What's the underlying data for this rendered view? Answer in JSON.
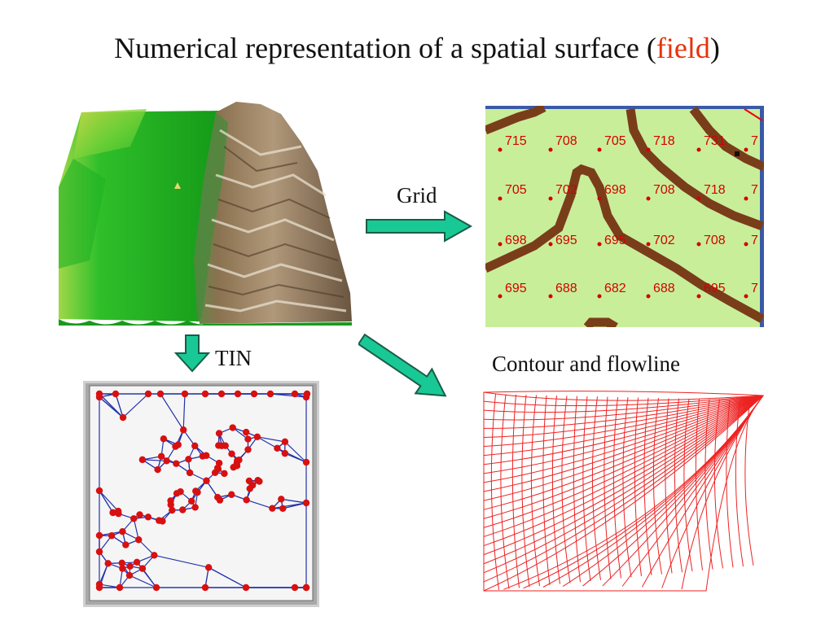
{
  "title": {
    "prefix": "Numerical representation of a spatial surface (",
    "highlight": "field",
    "suffix": ")"
  },
  "colors": {
    "title_highlight": "#e8320a",
    "arrow_fill": "#19c995",
    "arrow_stroke": "#1a5c48",
    "grid_background": "#c9ee9a",
    "contour_brown": "#7a3d1a",
    "grid_numbers": "#d40000",
    "tin_edges": "#2233aa",
    "tin_nodes": "#d81010",
    "flow_mesh": "#ee2222",
    "terrain_green": "#19b21c"
  },
  "labels": {
    "grid": "Grid",
    "tin": "TIN",
    "contour": "Contour and flowline"
  },
  "grid_values": [
    [
      "715",
      "708",
      "705",
      "718",
      "731",
      "7"
    ],
    [
      "705",
      "702",
      "698",
      "708",
      "718",
      "7"
    ],
    [
      "698",
      "695",
      "695",
      "702",
      "708",
      "7"
    ],
    [
      "695",
      "688",
      "682",
      "688",
      "695",
      "7"
    ]
  ]
}
